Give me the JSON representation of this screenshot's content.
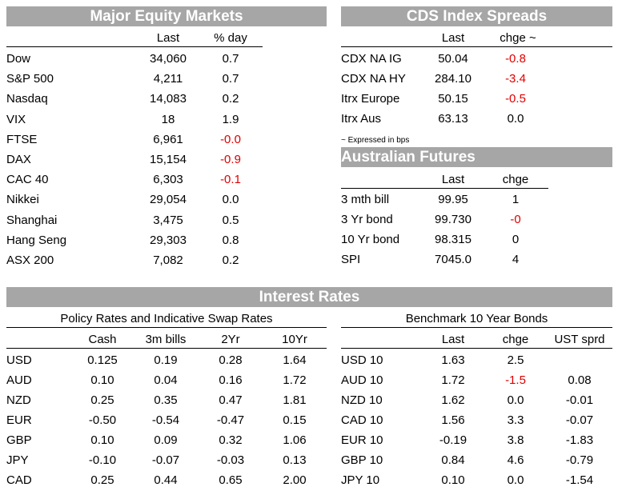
{
  "equity": {
    "title": "Major Equity Markets",
    "headers": [
      "Last",
      "% day"
    ],
    "rows": [
      {
        "name": "Dow",
        "last": "34,060",
        "chg": "0.7",
        "neg": false
      },
      {
        "name": "S&P 500",
        "last": "4,211",
        "chg": "0.7",
        "neg": false
      },
      {
        "name": "Nasdaq",
        "last": "14,083",
        "chg": "0.2",
        "neg": false
      },
      {
        "name": "VIX",
        "last": "18",
        "chg": "1.9",
        "neg": false
      },
      {
        "name": "FTSE",
        "last": "6,961",
        "chg": "-0.0",
        "neg": true
      },
      {
        "name": "DAX",
        "last": "15,154",
        "chg": "-0.9",
        "neg": true
      },
      {
        "name": "CAC 40",
        "last": "6,303",
        "chg": "-0.1",
        "neg": true
      },
      {
        "name": "Nikkei",
        "last": "29,054",
        "chg": "0.0",
        "neg": false
      },
      {
        "name": "Shanghai",
        "last": "3,475",
        "chg": "0.5",
        "neg": false
      },
      {
        "name": "Hang Seng",
        "last": "29,303",
        "chg": "0.8",
        "neg": false
      },
      {
        "name": "ASX 200",
        "last": "7,082",
        "chg": "0.2",
        "neg": false
      }
    ]
  },
  "cds": {
    "title": "CDS Index Spreads",
    "headers": [
      "Last",
      "chge ~"
    ],
    "rows": [
      {
        "name": "CDX NA IG",
        "last": "50.04",
        "chg": "-0.8",
        "neg": true
      },
      {
        "name": "CDX NA HY",
        "last": "284.10",
        "chg": "-3.4",
        "neg": true
      },
      {
        "name": "Itrx Europe",
        "last": "50.15",
        "chg": "-0.5",
        "neg": true
      },
      {
        "name": "Itrx Aus",
        "last": "63.13",
        "chg": "0.0",
        "neg": false
      }
    ],
    "note": "~ Expressed in bps"
  },
  "futures": {
    "title": "Australian Futures",
    "headers": [
      "Last",
      "chge"
    ],
    "rows": [
      {
        "name": "3 mth bill",
        "last": "99.95",
        "chg": "1",
        "neg": false
      },
      {
        "name": "3 Yr bond",
        "last": "99.730",
        "chg": "-0",
        "neg": true
      },
      {
        "name": "10 Yr bond",
        "last": "98.315",
        "chg": "0",
        "neg": false
      },
      {
        "name": "SPI",
        "last": "7045.0",
        "chg": "4",
        "neg": false
      }
    ]
  },
  "rates": {
    "title": "Interest Rates",
    "policy": {
      "subtitle": "Policy Rates and Indicative Swap Rates",
      "headers": [
        "Cash",
        "3m bills",
        "2Yr",
        "10Yr"
      ],
      "rows": [
        {
          "name": "USD",
          "vals": [
            "0.125",
            "0.19",
            "0.28",
            "1.64"
          ]
        },
        {
          "name": "AUD",
          "vals": [
            "0.10",
            "0.04",
            "0.16",
            "1.72"
          ]
        },
        {
          "name": "NZD",
          "vals": [
            "0.25",
            "0.35",
            "0.47",
            "1.81"
          ]
        },
        {
          "name": "EUR",
          "vals": [
            "-0.50",
            "-0.54",
            "-0.47",
            "0.15"
          ]
        },
        {
          "name": "GBP",
          "vals": [
            "0.10",
            "0.09",
            "0.32",
            "1.06"
          ]
        },
        {
          "name": "JPY",
          "vals": [
            "-0.10",
            "-0.07",
            "-0.03",
            "0.13"
          ]
        },
        {
          "name": "CAD",
          "vals": [
            "0.25",
            "0.44",
            "0.65",
            "2.00"
          ]
        }
      ]
    },
    "bonds": {
      "subtitle": "Benchmark 10 Year Bonds",
      "headers": [
        "Last",
        "chge",
        "UST sprd"
      ],
      "rows": [
        {
          "name": "USD 10",
          "last": "1.63",
          "chg": "2.5",
          "neg": false,
          "sprd": ""
        },
        {
          "name": "AUD 10",
          "last": "1.72",
          "chg": "-1.5",
          "neg": true,
          "sprd": "0.08"
        },
        {
          "name": "NZD 10",
          "last": "1.62",
          "chg": "0.0",
          "neg": false,
          "sprd": "-0.01"
        },
        {
          "name": "CAD 10",
          "last": "1.56",
          "chg": "3.3",
          "neg": false,
          "sprd": "-0.07"
        },
        {
          "name": "EUR 10",
          "last": "-0.19",
          "chg": "3.8",
          "neg": false,
          "sprd": "-1.83"
        },
        {
          "name": "GBP 10",
          "last": "0.84",
          "chg": "4.6",
          "neg": false,
          "sprd": "-0.79"
        },
        {
          "name": "JPY 10",
          "last": "0.10",
          "chg": "0.0",
          "neg": false,
          "sprd": "-1.54"
        }
      ]
    }
  },
  "colors": {
    "header_bg": "#a6a6a6",
    "negative": "#e00000"
  }
}
